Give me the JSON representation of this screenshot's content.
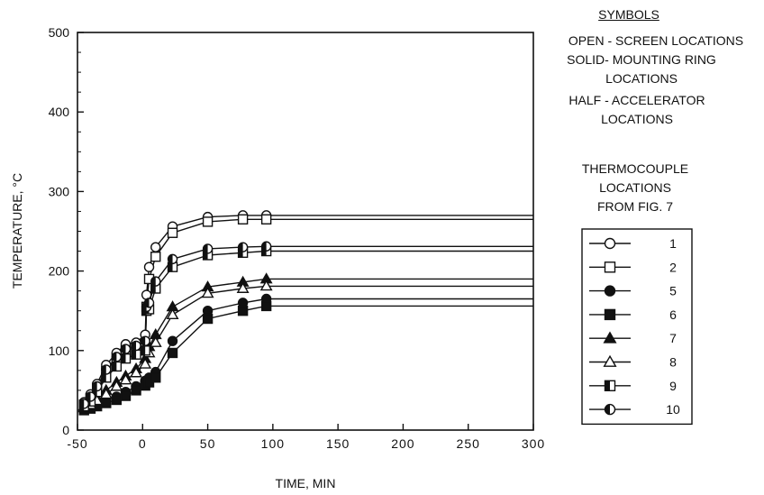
{
  "chart_data": {
    "type": "line",
    "xlabel": "TIME, MIN",
    "ylabel": "TEMPERATURE, °C",
    "xlim": [
      -50,
      300
    ],
    "ylim": [
      0,
      500
    ],
    "xticks": [
      -50,
      0,
      50,
      100,
      150,
      200,
      250,
      300
    ],
    "yticks": [
      0,
      100,
      200,
      300,
      400,
      500
    ],
    "xtick_labels": [
      "-50",
      "0",
      "50",
      "100",
      "150",
      "200",
      "250",
      "300"
    ],
    "ytick_labels": [
      "0",
      "100",
      "200",
      "300",
      "400",
      "500"
    ],
    "grid": false,
    "legend_position": "right",
    "legend_title": [
      "THERMOCOUPLE",
      "LOCATIONS",
      "FROM FIG. 7"
    ],
    "symbols_heading": "SYMBOLS",
    "symbols_notes": [
      [
        "OPEN - SCREEN LOCATIONS"
      ],
      [
        "SOLID- MOUNTING RING",
        "LOCATIONS"
      ],
      [
        "HALF - ACCELERATOR",
        "LOCATIONS"
      ]
    ],
    "series": [
      {
        "name": "1",
        "marker": "circle",
        "fill": "open",
        "x": [
          -45,
          -40,
          -35,
          -28,
          -20,
          -13,
          -5,
          2,
          3,
          5,
          10,
          23,
          50,
          77,
          95,
          300
        ],
        "y": [
          35,
          45,
          58,
          82,
          97,
          108,
          110,
          120,
          170,
          205,
          230,
          256,
          268,
          270,
          270,
          270
        ]
      },
      {
        "name": "2",
        "marker": "square",
        "fill": "open",
        "x": [
          -45,
          -40,
          -35,
          -28,
          -20,
          -13,
          -5,
          2,
          3,
          5,
          10,
          23,
          50,
          77,
          95,
          300
        ],
        "y": [
          32,
          40,
          53,
          74,
          90,
          100,
          104,
          108,
          155,
          190,
          218,
          248,
          262,
          265,
          265,
          265
        ]
      },
      {
        "name": "5",
        "marker": "circle",
        "fill": "solid",
        "x": [
          -45,
          -40,
          -35,
          -28,
          -20,
          -13,
          -5,
          2,
          5,
          10,
          23,
          50,
          77,
          95,
          300
        ],
        "y": [
          28,
          30,
          33,
          38,
          42,
          48,
          55,
          62,
          66,
          73,
          112,
          150,
          160,
          165,
          165
        ]
      },
      {
        "name": "6",
        "marker": "square",
        "fill": "solid",
        "x": [
          -45,
          -40,
          -35,
          -28,
          -20,
          -13,
          -5,
          2,
          5,
          10,
          23,
          50,
          77,
          95,
          300
        ],
        "y": [
          25,
          27,
          30,
          34,
          38,
          43,
          50,
          56,
          60,
          66,
          97,
          140,
          150,
          156,
          156
        ]
      },
      {
        "name": "7",
        "marker": "triangle",
        "fill": "solid",
        "x": [
          -45,
          -40,
          -35,
          -28,
          -20,
          -13,
          -5,
          2,
          5,
          10,
          23,
          50,
          77,
          95,
          300
        ],
        "y": [
          30,
          34,
          40,
          50,
          60,
          68,
          77,
          90,
          105,
          120,
          155,
          180,
          186,
          190,
          190
        ]
      },
      {
        "name": "8",
        "marker": "triangle",
        "fill": "open",
        "x": [
          -45,
          -40,
          -35,
          -28,
          -20,
          -13,
          -5,
          2,
          5,
          10,
          23,
          50,
          77,
          95,
          300
        ],
        "y": [
          28,
          32,
          37,
          45,
          55,
          63,
          72,
          83,
          97,
          110,
          145,
          172,
          178,
          181,
          181
        ]
      },
      {
        "name": "9",
        "marker": "square",
        "fill": "half",
        "x": [
          -45,
          -40,
          -35,
          -28,
          -20,
          -13,
          -5,
          2,
          3,
          5,
          10,
          23,
          50,
          77,
          95,
          300
        ],
        "y": [
          30,
          36,
          48,
          66,
          80,
          90,
          95,
          100,
          150,
          152,
          178,
          205,
          220,
          223,
          225,
          225
        ]
      },
      {
        "name": "10",
        "marker": "circle",
        "fill": "half",
        "x": [
          -45,
          -40,
          -35,
          -28,
          -20,
          -13,
          -5,
          2,
          3,
          5,
          10,
          23,
          50,
          77,
          95,
          300
        ],
        "y": [
          33,
          42,
          55,
          76,
          92,
          102,
          106,
          112,
          155,
          160,
          187,
          215,
          228,
          230,
          231,
          231
        ]
      }
    ]
  }
}
